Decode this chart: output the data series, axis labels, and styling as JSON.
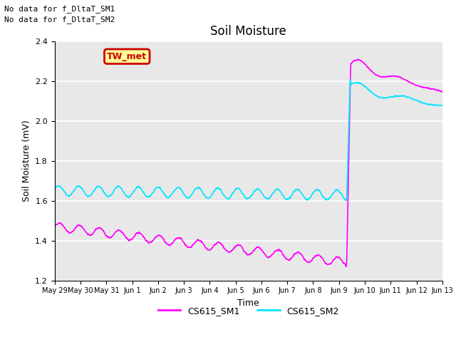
{
  "title": "Soil Moisture",
  "xlabel": "Time",
  "ylabel": "Soil Moisture (mV)",
  "ylim": [
    1.2,
    2.4
  ],
  "background_color": "#e8e8e8",
  "grid_color": "white",
  "sm1_color": "#ff00ff",
  "sm2_color": "#00e5ff",
  "top_text_line1": "No data for f_DltaT_SM1",
  "top_text_line2": "No data for f_DltaT_SM2",
  "box_label": "TW_met",
  "box_facecolor": "#ffff99",
  "box_edgecolor": "#cc0000",
  "box_textcolor": "#cc0000",
  "legend_label1": "CS615_SM1",
  "legend_label2": "CS615_SM2",
  "tick_labels": [
    "May 29",
    "May 30",
    "May 31",
    "Jun 1",
    "Jun 2",
    "Jun 3",
    "Jun 4",
    "Jun 5",
    "Jun 6",
    "Jun 7",
    "Jun 8",
    "Jun 9",
    "Jun 10",
    "Jun 11",
    "Jun 12",
    "Jun 13"
  ],
  "num_points": 2000,
  "spike_day": 11.3
}
